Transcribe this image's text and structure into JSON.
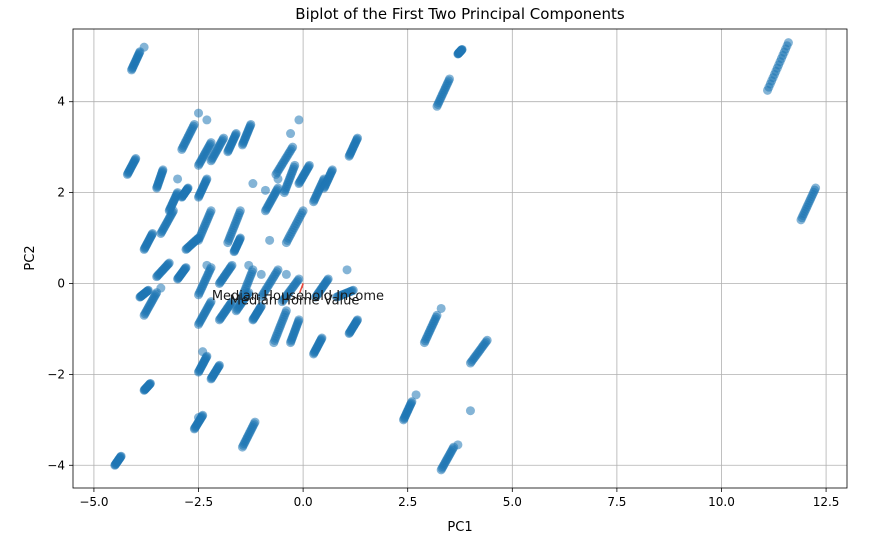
{
  "chart_data": {
    "type": "scatter",
    "title": "Biplot of the First Two Principal Components",
    "xlabel": "PC1",
    "ylabel": "PC2",
    "xlim": [
      -5.5,
      13.0
    ],
    "ylim": [
      -4.5,
      5.6
    ],
    "xticks": [
      -5.0,
      -2.5,
      0.0,
      2.5,
      5.0,
      7.5,
      10.0,
      12.5
    ],
    "xtick_labels": [
      "−5.0",
      "−2.5",
      "0.0",
      "2.5",
      "5.0",
      "7.5",
      "10.0",
      "12.5"
    ],
    "yticks": [
      -4,
      -2,
      0,
      2,
      4
    ],
    "ytick_labels": [
      "−4",
      "−2",
      "0",
      "2",
      "4"
    ],
    "grid": true,
    "point_color": "#1f77b4",
    "arrow_color": "#e8483c",
    "clusters": [
      {
        "x0": -4.1,
        "y0": 4.7,
        "x1": -3.9,
        "y1": 5.1
      },
      {
        "x0": -4.2,
        "y0": 2.4,
        "x1": -4.0,
        "y1": 2.75
      },
      {
        "x0": -3.5,
        "y0": 2.1,
        "x1": -3.35,
        "y1": 2.5
      },
      {
        "x0": -3.2,
        "y0": 1.6,
        "x1": -3.0,
        "y1": 2.0
      },
      {
        "x0": -3.4,
        "y0": 1.1,
        "x1": -3.1,
        "y1": 1.6
      },
      {
        "x0": -3.8,
        "y0": 0.75,
        "x1": -3.6,
        "y1": 1.1
      },
      {
        "x0": -3.5,
        "y0": 0.15,
        "x1": -3.2,
        "y1": 0.45
      },
      {
        "x0": -3.9,
        "y0": -0.3,
        "x1": -3.7,
        "y1": -0.15
      },
      {
        "x0": -3.8,
        "y0": -0.7,
        "x1": -3.5,
        "y1": -0.2
      },
      {
        "x0": -3.8,
        "y0": -2.35,
        "x1": -3.65,
        "y1": -2.2
      },
      {
        "x0": -4.5,
        "y0": -4.0,
        "x1": -4.35,
        "y1": -3.8
      },
      {
        "x0": -2.9,
        "y0": 2.95,
        "x1": -2.6,
        "y1": 3.5
      },
      {
        "x0": -2.5,
        "y0": 2.6,
        "x1": -2.2,
        "y1": 3.1
      },
      {
        "x0": -2.2,
        "y0": 2.7,
        "x1": -1.9,
        "y1": 3.2
      },
      {
        "x0": -1.8,
        "y0": 2.9,
        "x1": -1.6,
        "y1": 3.3
      },
      {
        "x0": -1.45,
        "y0": 3.05,
        "x1": -1.25,
        "y1": 3.5
      },
      {
        "x0": -2.5,
        "y0": 1.9,
        "x1": -2.3,
        "y1": 2.3
      },
      {
        "x0": -2.9,
        "y0": 1.9,
        "x1": -2.75,
        "y1": 2.1
      },
      {
        "x0": -2.5,
        "y0": 0.95,
        "x1": -2.2,
        "y1": 1.6
      },
      {
        "x0": -2.8,
        "y0": 0.75,
        "x1": -2.5,
        "y1": 1.0
      },
      {
        "x0": -1.8,
        "y0": 0.9,
        "x1": -1.5,
        "y1": 1.6
      },
      {
        "x0": -1.65,
        "y0": 0.7,
        "x1": -1.5,
        "y1": 1.0
      },
      {
        "x0": -0.9,
        "y0": 1.6,
        "x1": -0.6,
        "y1": 2.1
      },
      {
        "x0": -0.65,
        "y0": 2.4,
        "x1": -0.25,
        "y1": 3.0
      },
      {
        "x0": -0.45,
        "y0": 2.0,
        "x1": -0.2,
        "y1": 2.6
      },
      {
        "x0": -0.1,
        "y0": 2.2,
        "x1": 0.15,
        "y1": 2.6
      },
      {
        "x0": 0.25,
        "y0": 1.8,
        "x1": 0.5,
        "y1": 2.3
      },
      {
        "x0": 0.5,
        "y0": 2.1,
        "x1": 0.7,
        "y1": 2.5
      },
      {
        "x0": -0.4,
        "y0": 0.9,
        "x1": 0.0,
        "y1": 1.6
      },
      {
        "x0": 1.1,
        "y0": 2.8,
        "x1": 1.3,
        "y1": 3.2
      },
      {
        "x0": -3.0,
        "y0": 0.1,
        "x1": -2.8,
        "y1": 0.35
      },
      {
        "x0": -2.5,
        "y0": -0.25,
        "x1": -2.2,
        "y1": 0.35
      },
      {
        "x0": -2.0,
        "y0": 0.0,
        "x1": -1.7,
        "y1": 0.4
      },
      {
        "x0": -1.5,
        "y0": -0.4,
        "x1": -1.2,
        "y1": 0.3
      },
      {
        "x0": -1.0,
        "y0": -0.3,
        "x1": -0.6,
        "y1": 0.3
      },
      {
        "x0": -0.5,
        "y0": -0.4,
        "x1": -0.1,
        "y1": 0.1
      },
      {
        "x0": 0.3,
        "y0": -0.3,
        "x1": 0.6,
        "y1": 0.1
      },
      {
        "x0": 0.8,
        "y0": -0.3,
        "x1": 1.2,
        "y1": -0.15
      },
      {
        "x0": -2.5,
        "y0": -0.9,
        "x1": -2.2,
        "y1": -0.4
      },
      {
        "x0": -2.0,
        "y0": -0.8,
        "x1": -1.7,
        "y1": -0.4
      },
      {
        "x0": -1.6,
        "y0": -0.6,
        "x1": -1.3,
        "y1": -0.2
      },
      {
        "x0": -1.2,
        "y0": -0.8,
        "x1": -1.0,
        "y1": -0.5
      },
      {
        "x0": -0.7,
        "y0": -1.3,
        "x1": -0.4,
        "y1": -0.6
      },
      {
        "x0": -0.3,
        "y0": -1.3,
        "x1": -0.1,
        "y1": -0.8
      },
      {
        "x0": 1.1,
        "y0": -1.1,
        "x1": 1.3,
        "y1": -0.8
      },
      {
        "x0": 0.25,
        "y0": -1.55,
        "x1": 0.45,
        "y1": -1.2
      },
      {
        "x0": -2.5,
        "y0": -1.95,
        "x1": -2.3,
        "y1": -1.6
      },
      {
        "x0": -2.2,
        "y0": -2.1,
        "x1": -2.0,
        "y1": -1.8
      },
      {
        "x0": -2.6,
        "y0": -3.2,
        "x1": -2.4,
        "y1": -2.9
      },
      {
        "x0": -1.45,
        "y0": -3.6,
        "x1": -1.15,
        "y1": -3.05
      },
      {
        "x0": 3.2,
        "y0": 3.9,
        "x1": 3.5,
        "y1": 4.5
      },
      {
        "x0": 3.7,
        "y0": 5.05,
        "x1": 3.8,
        "y1": 5.15
      },
      {
        "x0": 2.9,
        "y0": -1.3,
        "x1": 3.2,
        "y1": -0.7
      },
      {
        "x0": 4.0,
        "y0": -1.75,
        "x1": 4.4,
        "y1": -1.25
      },
      {
        "x0": 2.4,
        "y0": -3.0,
        "x1": 2.6,
        "y1": -2.6
      },
      {
        "x0": 3.3,
        "y0": -4.1,
        "x1": 3.6,
        "y1": -3.6
      },
      {
        "x0": 11.1,
        "y0": 4.25,
        "x1": 11.6,
        "y1": 5.3
      },
      {
        "x0": 11.9,
        "y0": 1.4,
        "x1": 12.25,
        "y1": 2.1
      }
    ],
    "scatter_points": [
      {
        "x": -3.8,
        "y": 5.2
      },
      {
        "x": -2.5,
        "y": 3.75
      },
      {
        "x": -2.3,
        "y": 3.6
      },
      {
        "x": -0.1,
        "y": 3.6
      },
      {
        "x": -0.3,
        "y": 3.3
      },
      {
        "x": -3.0,
        "y": 2.3
      },
      {
        "x": -1.2,
        "y": 2.2
      },
      {
        "x": -0.9,
        "y": 2.05
      },
      {
        "x": -0.6,
        "y": 2.3
      },
      {
        "x": -0.8,
        "y": 0.95
      },
      {
        "x": -2.3,
        "y": 0.4
      },
      {
        "x": -1.3,
        "y": 0.4
      },
      {
        "x": -1.0,
        "y": 0.2
      },
      {
        "x": 1.05,
        "y": 0.3
      },
      {
        "x": -0.4,
        "y": 0.2
      },
      {
        "x": -3.4,
        "y": -0.1
      },
      {
        "x": 3.3,
        "y": -0.55
      },
      {
        "x": -2.4,
        "y": -1.5
      },
      {
        "x": 2.7,
        "y": -2.45
      },
      {
        "x": 4.0,
        "y": -2.8
      },
      {
        "x": -2.5,
        "y": -2.95
      },
      {
        "x": 3.7,
        "y": -3.55
      }
    ],
    "loadings": [
      {
        "label": "Median Household Income",
        "x": -0.03,
        "y": -0.1
      },
      {
        "label": "Median Home Value",
        "x": -0.08,
        "y": -0.2
      }
    ]
  }
}
